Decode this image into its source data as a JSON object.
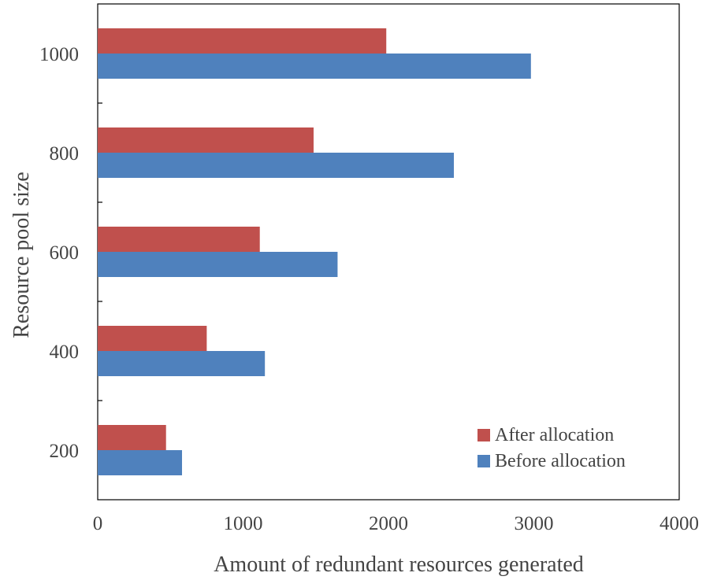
{
  "chart_data": {
    "type": "bar",
    "orientation": "horizontal",
    "categories": [
      "200",
      "400",
      "600",
      "800",
      "1000"
    ],
    "series": [
      {
        "name": "After allocation",
        "color": "#c0504d",
        "values": [
          470,
          750,
          1115,
          1485,
          1985
        ]
      },
      {
        "name": "Before allocation",
        "color": "#4f81bd",
        "values": [
          580,
          1150,
          1650,
          2450,
          2980
        ]
      }
    ],
    "xlabel": "Amount of redundant resources generated",
    "ylabel": "Resource pool size",
    "xlim": [
      0,
      4000
    ],
    "xticks": [
      "0",
      "1000",
      "2000",
      "3000",
      "4000"
    ],
    "grid": false,
    "legend_position": "bottom-right"
  }
}
